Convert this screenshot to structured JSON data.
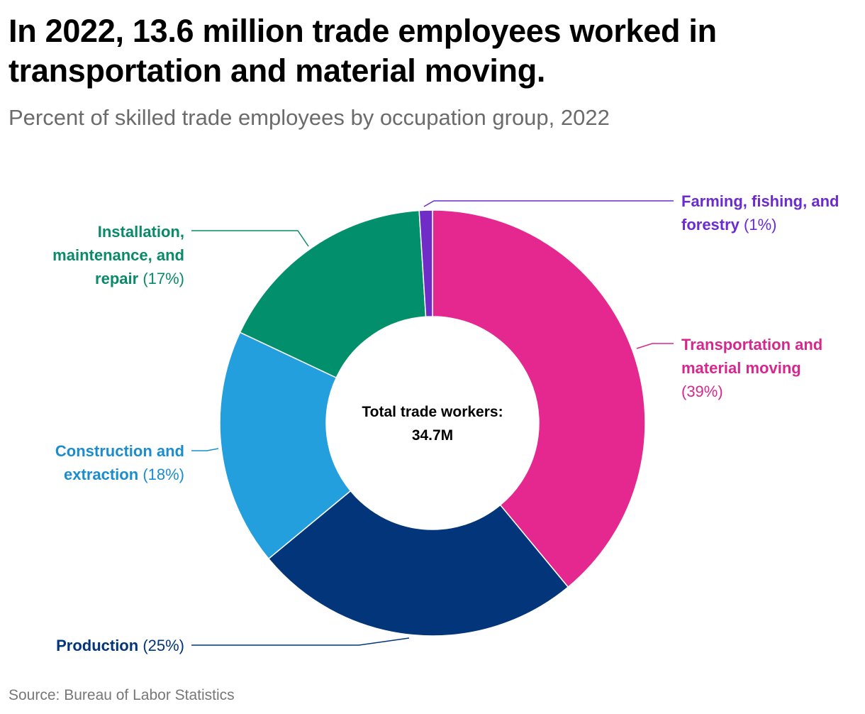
{
  "title": "In 2022, 13.6 million trade employees worked in transportation and material moving.",
  "subtitle": "Percent of skilled trade employees by occupation group, 2022",
  "source": "Source: Bureau of Labor Statistics",
  "center": {
    "line1": "Total trade workers:",
    "line2": "34.7M"
  },
  "chart_data": {
    "type": "pie",
    "donut": true,
    "slices": [
      {
        "name_lines": [
          "Transportation and",
          "material moving"
        ],
        "pct_label": "(39%)",
        "value": 39,
        "color": "#e5288f"
      },
      {
        "name_lines": [
          "Production"
        ],
        "pct_label": "(25%)",
        "value": 25,
        "color": "#02357a"
      },
      {
        "name_lines": [
          "Construction and",
          "extraction"
        ],
        "pct_label": "(18%)",
        "value": 18,
        "color": "#249fde"
      },
      {
        "name_lines": [
          "Installation,",
          "maintenance, and",
          "repair"
        ],
        "pct_label": "(17%)",
        "value": 17,
        "color": "#028f6c"
      },
      {
        "name_lines": [
          "Farming, fishing, and",
          "forestry"
        ],
        "pct_label": "(1%)",
        "value": 1,
        "color": "#6f2cc7"
      }
    ],
    "label_colors": [
      "#d6288c",
      "#02357a",
      "#1b8dcf",
      "#0a8a6a",
      "#6a2bd0"
    ]
  }
}
